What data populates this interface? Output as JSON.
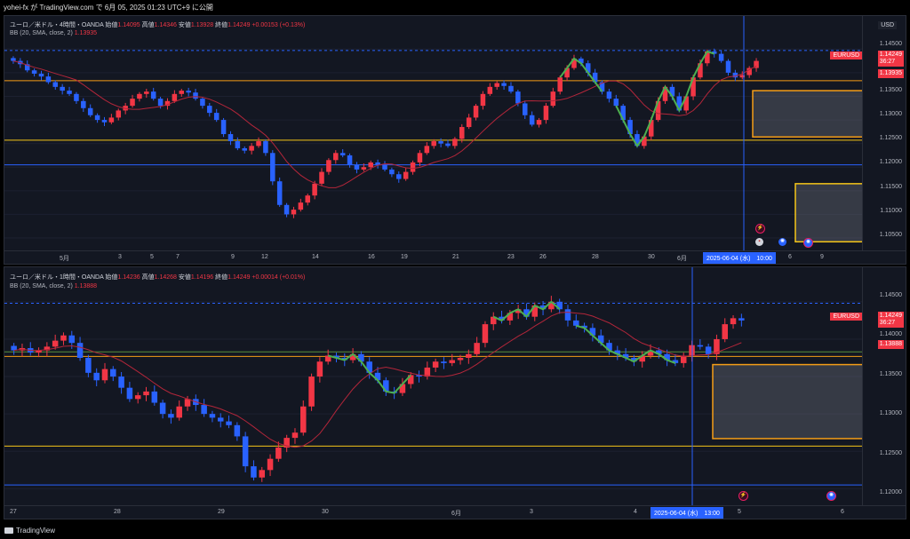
{
  "header_text": "yohei-fx が TradingView.com で 6月 05, 2025 01:23 UTC+9 に公開",
  "footer_brand": "TradingView",
  "currency": "USD",
  "panels": [
    {
      "legend_line1": "ユーロ／米ドル・4時間・OANDA",
      "open_label": "始値",
      "open": "1.14095",
      "high_label": "高値",
      "high": "1.14346",
      "low_label": "安値",
      "low": "1.13928",
      "close_label": "終値",
      "close": "1.14249",
      "change": "+0.00153 (+0.13%)",
      "indicator_name": "BB (20, SMA, close, 2)",
      "indicator_value": "1.13935",
      "price_ticks": [
        "1.14500",
        "1.14000",
        "1.13500",
        "1.13000",
        "1.12500",
        "1.12000",
        "1.11500",
        "1.11000",
        "1.10500"
      ],
      "symbol_tag": "EURUSD",
      "last_price": "1.14249",
      "countdown": "36:27",
      "bb_price": "1.13935",
      "time_ticks": [
        "5月",
        "3",
        "5",
        "7",
        "9",
        "12",
        "14",
        "16",
        "19",
        "21",
        "23",
        "26",
        "28",
        "30",
        "6月",
        "2",
        "6",
        "9"
      ],
      "crosshair_label": "2025-06-04 (水)　10:00"
    },
    {
      "legend_line1": "ユーロ／米ドル・1時間・OANDA",
      "open_label": "始値",
      "open": "1.14236",
      "high_label": "高値",
      "high": "1.14268",
      "low_label": "安値",
      "low": "1.14196",
      "close_label": "終値",
      "close": "1.14249",
      "change": "+0.00014 (+0.01%)",
      "indicator_name": "BB (20, SMA, close, 2)",
      "indicator_value": "1.13888",
      "price_ticks": [
        "1.14500",
        "1.14000",
        "1.13500",
        "1.13000",
        "1.12500",
        "1.12000"
      ],
      "symbol_tag": "EURUSD",
      "last_price": "1.14249",
      "countdown": "36:27",
      "bb_price": "1.13888",
      "time_ticks": [
        "27",
        "28",
        "29",
        "30",
        "6月",
        "3",
        "4",
        "5",
        "6"
      ],
      "crosshair_label": "2025-06-04 (水)　13:00"
    }
  ],
  "colors": {
    "bull": "#f23645",
    "bear": "#2962ff",
    "bb_basis": "#b2263a",
    "zigzag": "#4caf50",
    "level_orange": "#f59d16",
    "level_yellow": "#f5c518",
    "level_blue": "#2962ff"
  },
  "chart_data": [
    {
      "type": "candlestick",
      "title": "ユーロ／米ドル・4時間・OANDA",
      "ylim": [
        1.1035,
        1.1475
      ],
      "close_series_approx": [
        1.1425,
        1.1418,
        1.1405,
        1.1398,
        1.1392,
        1.138,
        1.137,
        1.1362,
        1.1355,
        1.134,
        1.1325,
        1.131,
        1.13,
        1.1295,
        1.1305,
        1.132,
        1.133,
        1.1345,
        1.1355,
        1.136,
        1.1345,
        1.133,
        1.134,
        1.1355,
        1.1362,
        1.1358,
        1.1345,
        1.133,
        1.1315,
        1.13,
        1.127,
        1.1255,
        1.124,
        1.1235,
        1.1245,
        1.1255,
        1.123,
        1.117,
        1.112,
        1.11,
        1.111,
        1.1125,
        1.114,
        1.1165,
        1.119,
        1.1215,
        1.123,
        1.1225,
        1.1205,
        1.1195,
        1.12,
        1.121,
        1.1205,
        1.1195,
        1.1185,
        1.1175,
        1.119,
        1.121,
        1.123,
        1.1245,
        1.1255,
        1.125,
        1.1245,
        1.126,
        1.1285,
        1.1305,
        1.133,
        1.1355,
        1.137,
        1.1378,
        1.1372,
        1.136,
        1.1335,
        1.131,
        1.129,
        1.13,
        1.133,
        1.136,
        1.139,
        1.141,
        1.143,
        1.142,
        1.14,
        1.138,
        1.136,
        1.1345,
        1.133,
        1.13,
        1.127,
        1.1245,
        1.1265,
        1.13,
        1.134,
        1.137,
        1.135,
        1.132,
        1.135,
        1.139,
        1.142,
        1.1445,
        1.144,
        1.1425,
        1.14,
        1.139,
        1.1395,
        1.141,
        1.1425
      ],
      "levels": [
        1.1383,
        1.1257,
        1.1205
      ],
      "zones": [
        [
          1.1264,
          1.1362
        ],
        [
          1.1042,
          1.1165
        ]
      ]
    },
    {
      "type": "candlestick",
      "title": "ユーロ／米ドル・1時間・OANDA",
      "ylim": [
        1.1185,
        1.147
      ],
      "close_series_approx": [
        1.1385,
        1.1388,
        1.1382,
        1.1385,
        1.139,
        1.1398,
        1.1405,
        1.1395,
        1.1375,
        1.1355,
        1.1345,
        1.136,
        1.135,
        1.1335,
        1.132,
        1.1325,
        1.133,
        1.1315,
        1.13,
        1.1295,
        1.131,
        1.132,
        1.1312,
        1.13,
        1.1295,
        1.129,
        1.1285,
        1.127,
        1.123,
        1.1215,
        1.1225,
        1.124,
        1.1255,
        1.1268,
        1.1275,
        1.131,
        1.135,
        1.137,
        1.1378,
        1.1375,
        1.1372,
        1.138,
        1.137,
        1.1355,
        1.1345,
        1.133,
        1.1328,
        1.134,
        1.1352,
        1.135,
        1.1362,
        1.137,
        1.1368,
        1.1372,
        1.1375,
        1.138,
        1.1395,
        1.142,
        1.143,
        1.1425,
        1.1435,
        1.144,
        1.143,
        1.1445,
        1.144,
        1.145,
        1.144,
        1.1425,
        1.1418,
        1.1415,
        1.1405,
        1.1395,
        1.1385,
        1.138,
        1.1375,
        1.137,
        1.1378,
        1.1385,
        1.138,
        1.1372,
        1.1368,
        1.1378,
        1.1392,
        1.139,
        1.138,
        1.14,
        1.142,
        1.1428,
        1.1425
      ],
      "levels": [
        1.1383,
        1.1377,
        1.1257,
        1.1205
      ],
      "zones": [
        [
          1.1267,
          1.1366
        ]
      ]
    }
  ]
}
